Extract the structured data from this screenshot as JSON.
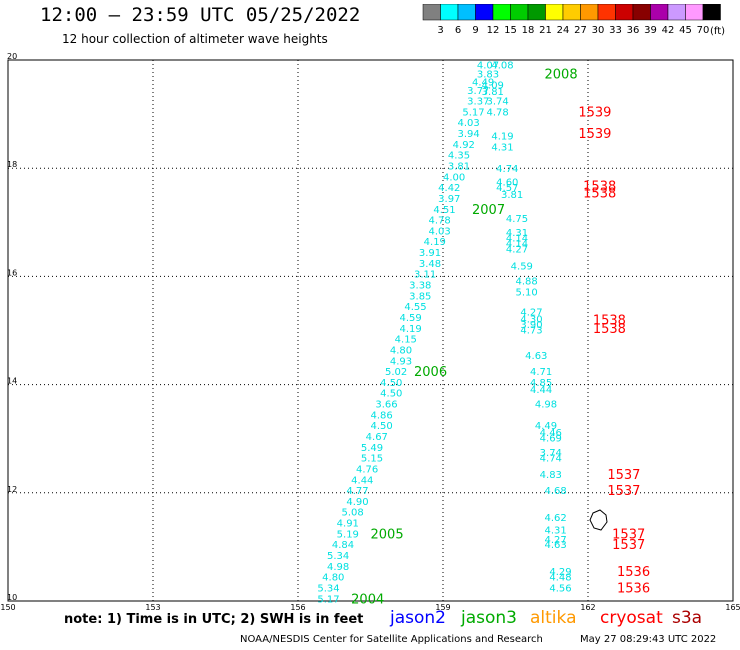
{
  "header": {
    "title": "12:00 – 23:59 UTC 05/25/2022",
    "subtitle": "12 hour collection of altimeter wave heights",
    "units_label": "(ft)"
  },
  "colorbar": {
    "colors": [
      "#808080",
      "#00ffff",
      "#00bfff",
      "#0000ff",
      "#00ff00",
      "#00cc00",
      "#009900",
      "#ffff00",
      "#ffcc00",
      "#ff9900",
      "#ff3300",
      "#cc0000",
      "#880000",
      "#aa00aa",
      "#cc99ff",
      "#ff99ff",
      "#000000"
    ],
    "labels": [
      "3",
      "6",
      "9",
      "12",
      "15",
      "18",
      "21",
      "24",
      "27",
      "30",
      "33",
      "36",
      "39",
      "42",
      "45",
      "70"
    ]
  },
  "footer": {
    "note": "note:  1) Time is in UTC;  2) SWH is in feet",
    "credit": "NOAA/NESDIS Center for Satellite Applications and Research",
    "timestamp": "May 27 08:29:43 UTC 2022",
    "satellites": [
      {
        "name": "jason2",
        "color": "#0000ff"
      },
      {
        "name": "jason3",
        "color": "#00aa00"
      },
      {
        "name": "altika",
        "color": "#ff9900"
      },
      {
        "name": "cryosat",
        "color": "#ff0000"
      },
      {
        "name": "s3a",
        "color": "#aa0000"
      }
    ]
  },
  "chart_data": {
    "type": "scatter",
    "xlabel": "",
    "ylabel": "",
    "xlim": [
      150,
      165
    ],
    "ylim": [
      10,
      20
    ],
    "x_ticks": [
      150,
      153,
      156,
      159,
      162,
      165
    ],
    "y_ticks": [
      10,
      12,
      14,
      16,
      18,
      20
    ],
    "grid": true,
    "value_color": "#00e0e0",
    "tracks": [
      {
        "satellite": "jason3",
        "pass_labels": [
          {
            "text": "2004",
            "lon": 157.1,
            "lat": 10.05
          },
          {
            "text": "2005",
            "lon": 157.5,
            "lat": 11.25
          },
          {
            "text": "2006",
            "lon": 158.4,
            "lat": 14.25
          },
          {
            "text": "2007",
            "lon": 159.6,
            "lat": 17.25
          },
          {
            "text": "2008",
            "lon": 161.1,
            "lat": 19.75
          }
        ],
        "points": [
          {
            "lon": 156.4,
            "lat": 10.05,
            "swh": "5.17"
          },
          {
            "lon": 156.4,
            "lat": 10.25,
            "swh": "5.34"
          },
          {
            "lon": 156.5,
            "lat": 10.45,
            "swh": "4.80"
          },
          {
            "lon": 156.6,
            "lat": 10.65,
            "swh": "4.98"
          },
          {
            "lon": 156.6,
            "lat": 10.85,
            "swh": "5.34"
          },
          {
            "lon": 156.7,
            "lat": 11.05,
            "swh": "4.84"
          },
          {
            "lon": 156.8,
            "lat": 11.25,
            "swh": "5.19"
          },
          {
            "lon": 156.8,
            "lat": 11.45,
            "swh": "4.91"
          },
          {
            "lon": 156.9,
            "lat": 11.65,
            "swh": "5.08"
          },
          {
            "lon": 157.0,
            "lat": 11.85,
            "swh": "4.90"
          },
          {
            "lon": 157.0,
            "lat": 12.05,
            "swh": "4.77"
          },
          {
            "lon": 157.1,
            "lat": 12.25,
            "swh": "4.44"
          },
          {
            "lon": 157.2,
            "lat": 12.45,
            "swh": "4.76"
          },
          {
            "lon": 157.3,
            "lat": 12.65,
            "swh": "5.15"
          },
          {
            "lon": 157.3,
            "lat": 12.85,
            "swh": "5.49"
          },
          {
            "lon": 157.4,
            "lat": 13.05,
            "swh": "4.67"
          },
          {
            "lon": 157.5,
            "lat": 13.25,
            "swh": "4.50"
          },
          {
            "lon": 157.5,
            "lat": 13.45,
            "swh": "4.86"
          },
          {
            "lon": 157.6,
            "lat": 13.65,
            "swh": "3.66"
          },
          {
            "lon": 157.7,
            "lat": 13.85,
            "swh": "4.50"
          },
          {
            "lon": 157.7,
            "lat": 14.05,
            "swh": "4.50"
          },
          {
            "lon": 157.8,
            "lat": 14.25,
            "swh": "5.02"
          },
          {
            "lon": 157.9,
            "lat": 14.45,
            "swh": "4.93"
          },
          {
            "lon": 157.9,
            "lat": 14.65,
            "swh": "4.80"
          },
          {
            "lon": 158.0,
            "lat": 14.85,
            "swh": "4.15"
          },
          {
            "lon": 158.1,
            "lat": 15.05,
            "swh": "4.19"
          },
          {
            "lon": 158.1,
            "lat": 15.25,
            "swh": "4.59"
          },
          {
            "lon": 158.2,
            "lat": 15.45,
            "swh": "4.55"
          },
          {
            "lon": 158.3,
            "lat": 15.65,
            "swh": "3.85"
          },
          {
            "lon": 158.3,
            "lat": 15.85,
            "swh": "3.38"
          },
          {
            "lon": 158.4,
            "lat": 16.05,
            "swh": "3.11"
          },
          {
            "lon": 158.5,
            "lat": 16.25,
            "swh": "3.48"
          },
          {
            "lon": 158.5,
            "lat": 16.45,
            "swh": "3.91"
          },
          {
            "lon": 158.6,
            "lat": 16.65,
            "swh": "4.19"
          },
          {
            "lon": 158.7,
            "lat": 16.85,
            "swh": "4.03"
          },
          {
            "lon": 158.7,
            "lat": 17.05,
            "swh": "4.78"
          },
          {
            "lon": 158.8,
            "lat": 17.25,
            "swh": "4.51"
          },
          {
            "lon": 158.9,
            "lat": 17.45,
            "swh": "3.97"
          },
          {
            "lon": 158.9,
            "lat": 17.65,
            "swh": "4.42"
          },
          {
            "lon": 159.0,
            "lat": 17.85,
            "swh": "4.00"
          },
          {
            "lon": 159.1,
            "lat": 18.05,
            "swh": "3.81"
          },
          {
            "lon": 159.1,
            "lat": 18.25,
            "swh": "4.35"
          },
          {
            "lon": 159.2,
            "lat": 18.45,
            "swh": "4.92"
          },
          {
            "lon": 159.3,
            "lat": 18.65,
            "swh": "3.94"
          },
          {
            "lon": 159.3,
            "lat": 18.85,
            "swh": "4.03"
          },
          {
            "lon": 159.4,
            "lat": 19.05,
            "swh": "5.17"
          },
          {
            "lon": 159.5,
            "lat": 19.25,
            "swh": "3.37"
          },
          {
            "lon": 159.5,
            "lat": 19.45,
            "swh": "3.77"
          },
          {
            "lon": 159.6,
            "lat": 19.6,
            "swh": "4.49"
          },
          {
            "lon": 159.7,
            "lat": 19.75,
            "swh": "3.83"
          },
          {
            "lon": 159.7,
            "lat": 19.92,
            "swh": "4.07"
          },
          {
            "lon": 160.0,
            "lat": 19.92,
            "swh": "4.08"
          },
          {
            "lon": 159.8,
            "lat": 19.55,
            "swh": "4.09"
          },
          {
            "lon": 159.8,
            "lat": 19.43,
            "swh": "3.81"
          },
          {
            "lon": 159.9,
            "lat": 19.25,
            "swh": "3.74"
          },
          {
            "lon": 159.9,
            "lat": 19.05,
            "swh": "4.78"
          },
          {
            "lon": 160.0,
            "lat": 18.6,
            "swh": "4.19"
          },
          {
            "lon": 160.0,
            "lat": 18.4,
            "swh": "4.31"
          },
          {
            "lon": 160.1,
            "lat": 18.0,
            "swh": "4.74"
          },
          {
            "lon": 160.1,
            "lat": 17.75,
            "swh": "4.60"
          },
          {
            "lon": 160.1,
            "lat": 17.65,
            "swh": "4.57"
          },
          {
            "lon": 160.2,
            "lat": 17.52,
            "swh": "3.81"
          },
          {
            "lon": 160.3,
            "lat": 17.08,
            "swh": "4.75"
          },
          {
            "lon": 160.3,
            "lat": 16.82,
            "swh": "4.31"
          },
          {
            "lon": 160.3,
            "lat": 16.72,
            "swh": "4.14"
          },
          {
            "lon": 160.3,
            "lat": 16.62,
            "swh": "4.14"
          },
          {
            "lon": 160.3,
            "lat": 16.52,
            "swh": "4.27"
          },
          {
            "lon": 160.4,
            "lat": 16.2,
            "swh": "4.59"
          },
          {
            "lon": 160.5,
            "lat": 15.92,
            "swh": "4.88"
          },
          {
            "lon": 160.5,
            "lat": 15.72,
            "swh": "5.10"
          },
          {
            "lon": 160.6,
            "lat": 15.35,
            "swh": "4.27"
          },
          {
            "lon": 160.6,
            "lat": 15.22,
            "swh": "4.30"
          },
          {
            "lon": 160.6,
            "lat": 15.12,
            "swh": "3.90"
          },
          {
            "lon": 160.6,
            "lat": 15.02,
            "swh": "4.73"
          },
          {
            "lon": 160.7,
            "lat": 14.55,
            "swh": "4.63"
          },
          {
            "lon": 160.8,
            "lat": 14.25,
            "swh": "4.71"
          },
          {
            "lon": 160.8,
            "lat": 14.05,
            "swh": "4.85"
          },
          {
            "lon": 160.8,
            "lat": 13.92,
            "swh": "4.44"
          },
          {
            "lon": 160.9,
            "lat": 13.65,
            "swh": "4.98"
          },
          {
            "lon": 160.9,
            "lat": 13.25,
            "swh": "4.49"
          },
          {
            "lon": 161.0,
            "lat": 13.12,
            "swh": "4.46"
          },
          {
            "lon": 161.0,
            "lat": 13.02,
            "swh": "4.69"
          },
          {
            "lon": 161.0,
            "lat": 12.75,
            "swh": "3.74"
          },
          {
            "lon": 161.0,
            "lat": 12.65,
            "swh": "4.74"
          },
          {
            "lon": 161.0,
            "lat": 12.35,
            "swh": "4.83"
          },
          {
            "lon": 161.1,
            "lat": 12.05,
            "swh": "4.68"
          },
          {
            "lon": 161.1,
            "lat": 11.55,
            "swh": "4.62"
          },
          {
            "lon": 161.1,
            "lat": 11.32,
            "swh": "4.31"
          },
          {
            "lon": 161.1,
            "lat": 11.15,
            "swh": "4.27"
          },
          {
            "lon": 161.1,
            "lat": 11.05,
            "swh": "4.63"
          },
          {
            "lon": 161.2,
            "lat": 10.55,
            "swh": "4.29"
          },
          {
            "lon": 161.2,
            "lat": 10.45,
            "swh": "4.48"
          },
          {
            "lon": 161.2,
            "lat": 10.25,
            "swh": "4.56"
          }
        ]
      },
      {
        "satellite": "cryosat",
        "pass_labels": [
          {
            "text": "1539",
            "lon": 161.8,
            "lat": 19.05
          },
          {
            "text": "1539",
            "lon": 161.8,
            "lat": 18.65
          },
          {
            "text": "1538",
            "lon": 161.9,
            "lat": 17.68
          },
          {
            "text": "1538",
            "lon": 161.9,
            "lat": 17.55
          },
          {
            "text": "1538",
            "lon": 162.1,
            "lat": 15.2
          },
          {
            "text": "1538",
            "lon": 162.1,
            "lat": 15.05
          },
          {
            "text": "1537",
            "lon": 162.4,
            "lat": 12.35
          },
          {
            "text": "1537",
            "lon": 162.4,
            "lat": 12.05
          },
          {
            "text": "1537",
            "lon": 162.5,
            "lat": 11.25
          },
          {
            "text": "1537",
            "lon": 162.5,
            "lat": 11.05
          },
          {
            "text": "1536",
            "lon": 162.6,
            "lat": 10.55
          },
          {
            "text": "1536",
            "lon": 162.6,
            "lat": 10.25
          }
        ],
        "points": []
      }
    ]
  }
}
